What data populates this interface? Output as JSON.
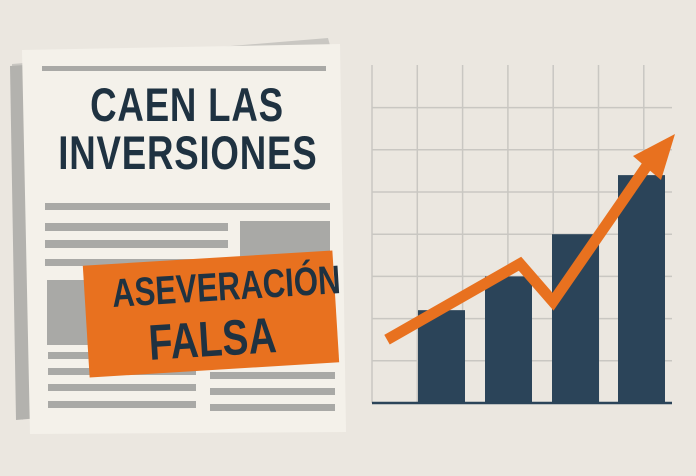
{
  "newspaper": {
    "headline_line1": "CAEN LAS",
    "headline_line2": "INVERSIONES",
    "stamp_line1": "ASEVERACIÓN",
    "stamp_line2": "FALSA"
  },
  "colors": {
    "background": "#ebe7e0",
    "paper": "#f4f1ea",
    "text_dark": "#1f3241",
    "stamp_orange": "#e8711f",
    "bar_navy": "#2b4459",
    "arrow_orange": "#e8711f",
    "placeholder_gray": "#a9a9a6"
  },
  "chart_data": {
    "type": "bar",
    "values": [
      2.2,
      3.0,
      4.0,
      5.4
    ],
    "trend_arrow": [
      1.5,
      3.3,
      2.4,
      5.9
    ],
    "grid": true,
    "title": "",
    "xlabel": "",
    "ylabel": ""
  }
}
